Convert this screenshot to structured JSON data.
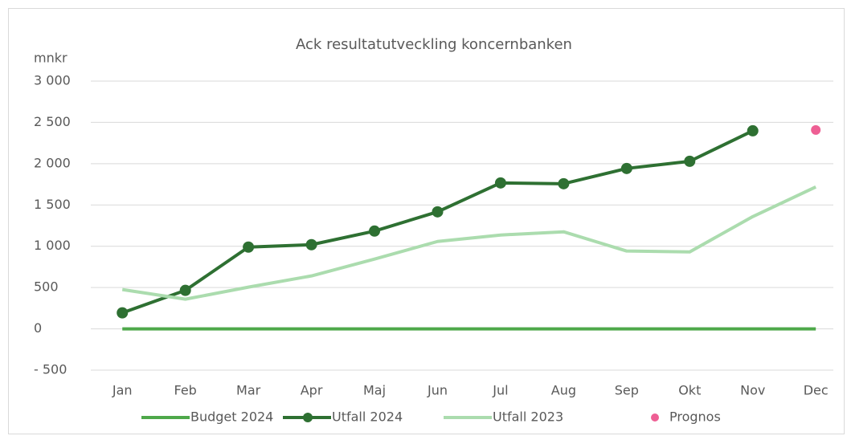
{
  "chart_data": {
    "type": "line",
    "title": "Ack resultatutveckling koncernbanken",
    "y_label": "mnkr",
    "categories": [
      "Jan",
      "Feb",
      "Mar",
      "Apr",
      "Maj",
      "Jun",
      "Jul",
      "Aug",
      "Sep",
      "Okt",
      "Nov",
      "Dec"
    ],
    "series": [
      {
        "name": "Budget 2024",
        "color": "#4ea84a",
        "values": [
          0,
          0,
          0,
          0,
          0,
          0,
          0,
          0,
          0,
          0,
          0,
          0
        ]
      },
      {
        "name": "Utfall 2024",
        "color": "#2e7032",
        "markers": true,
        "values": [
          194,
          466,
          990,
          1019,
          1184,
          1417,
          1767,
          1757,
          1942,
          2029,
          2398,
          null
        ]
      },
      {
        "name": "Utfall 2023",
        "color": "#abdcae",
        "values": [
          476,
          359,
          505,
          641,
          845,
          1058,
          1136,
          1175,
          942,
          932,
          1359,
          1718
        ]
      },
      {
        "name": "Prognos",
        "color": "#ee5f94",
        "type": "scatter",
        "values": [
          null,
          null,
          null,
          null,
          null,
          null,
          null,
          null,
          null,
          null,
          null,
          2408
        ]
      }
    ],
    "ylim": [
      -500,
      3000
    ],
    "yticks": [
      {
        "value": -500,
        "label": "- 500"
      },
      0,
      500,
      {
        "value": 1000,
        "label": "1 000"
      },
      {
        "value": 1500,
        "label": "1 500"
      },
      {
        "value": 2000,
        "label": "2 000"
      },
      {
        "value": 2500,
        "label": "2 500"
      },
      {
        "value": 3000,
        "label": "3 000"
      }
    ],
    "grid": true,
    "legend": "bottom"
  }
}
